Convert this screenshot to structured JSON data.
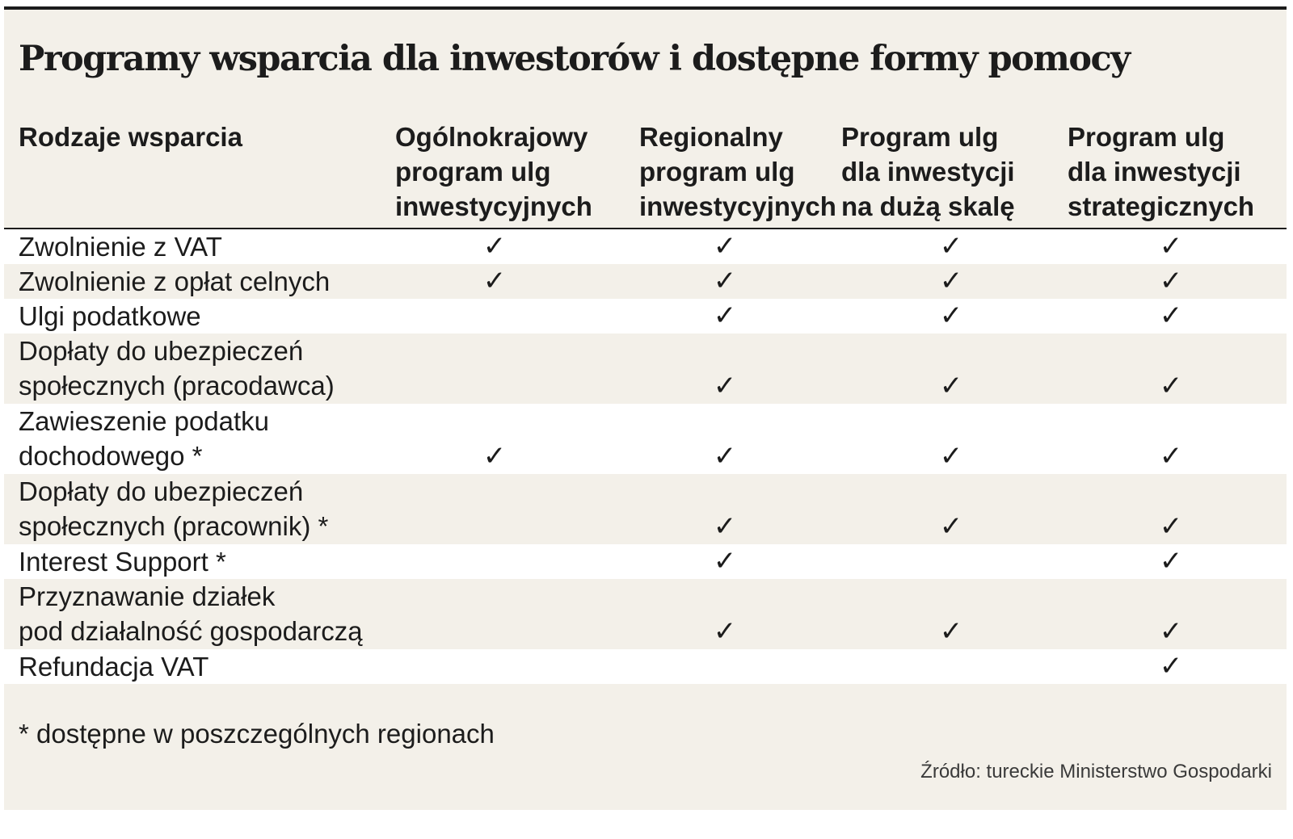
{
  "title": "Programy wsparcia dla inwestorów i dostępne formy pomocy",
  "columns": [
    "Rodzaje wsparcia",
    "Ogólnokrajowy\nprogram ulg\ninwestycyjnych",
    "Regionalny\nprogram ulg\ninwestycyjnych",
    "Program ulg\ndla inwestycji\nna dużą skalę",
    "Program ulg\ndla inwestycji\nstrategicznych"
  ],
  "check_symbol": "✓",
  "rows": [
    {
      "label": "Zwolnienie z VAT",
      "checks": [
        true,
        true,
        true,
        true
      ]
    },
    {
      "label": "Zwolnienie z opłat celnych",
      "checks": [
        true,
        true,
        true,
        true
      ]
    },
    {
      "label": "Ulgi podatkowe",
      "checks": [
        false,
        true,
        true,
        true
      ]
    },
    {
      "label": "Dopłaty do ubezpieczeń\nspołecznych (pracodawca)",
      "checks": [
        false,
        true,
        true,
        true
      ]
    },
    {
      "label": "Zawieszenie podatku\ndochodowego *",
      "checks": [
        true,
        true,
        true,
        true
      ]
    },
    {
      "label": "Dopłaty do ubezpieczeń\nspołecznych (pracownik) *",
      "checks": [
        false,
        true,
        true,
        true
      ]
    },
    {
      "label": "Interest Support *",
      "checks": [
        false,
        true,
        false,
        true
      ]
    },
    {
      "label": "Przyznawanie działek\npod działalność gospodarczą",
      "checks": [
        false,
        true,
        true,
        true
      ]
    },
    {
      "label": "Refundacja VAT",
      "checks": [
        false,
        false,
        false,
        true
      ]
    }
  ],
  "footnote": "* dostępne w poszczególnych regionach",
  "source": "Źródło: tureckie Ministerstwo Gospodarki",
  "colors": {
    "background": "#f3f0e9",
    "row_alt": "#ffffff",
    "text": "#1c1c1c"
  }
}
